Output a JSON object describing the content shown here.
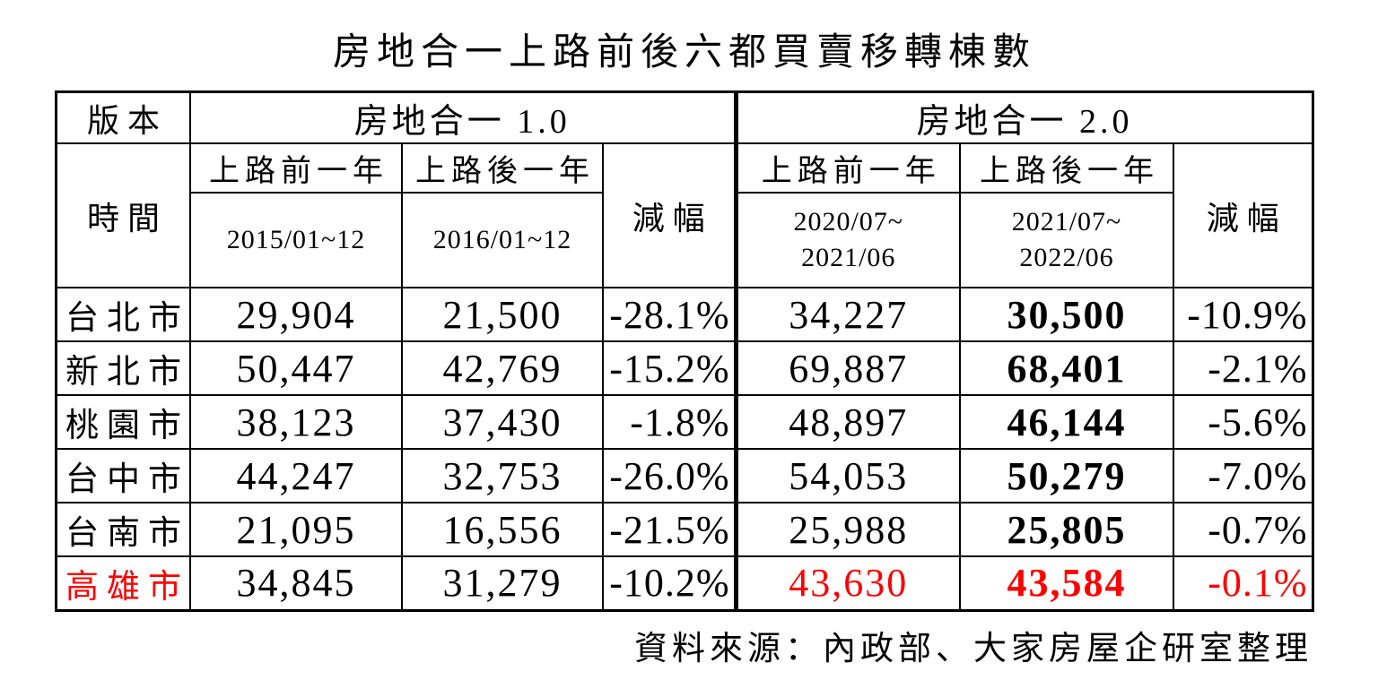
{
  "title": "房地合一上路前後六都買賣移轉棟數",
  "footer": "資料來源：內政部、大家房屋企研室整理",
  "colors": {
    "text": "#000000",
    "border": "#000000",
    "highlight": "#fe0000",
    "background": "#ffffff"
  },
  "table": {
    "version_label": "版本",
    "time_label": "時間",
    "sections": {
      "v1": {
        "label": "房地合一 1.0",
        "before_label": "上路前一年",
        "after_label": "上路後一年",
        "before_period": "2015/01~12",
        "after_period": "2016/01~12",
        "decrease_label": "減幅"
      },
      "v2": {
        "label": "房地合一 2.0",
        "before_label": "上路前一年",
        "after_label": "上路後一年",
        "before_period_line1": "2020/07~",
        "before_period_line2": "2021/06",
        "after_period_line1": "2021/07~",
        "after_period_line2": "2022/06",
        "decrease_label": "減幅"
      }
    },
    "rows": [
      {
        "city": "台北市",
        "v1_before": "29,904",
        "v1_after": "21,500",
        "v1_change": "-28.1%",
        "v2_before": "34,227",
        "v2_after": "30,500",
        "v2_change": "-10.9%"
      },
      {
        "city": "新北市",
        "v1_before": "50,447",
        "v1_after": "42,769",
        "v1_change": "-15.2%",
        "v2_before": "69,887",
        "v2_after": "68,401",
        "v2_change": "-2.1%"
      },
      {
        "city": "桃園市",
        "v1_before": "38,123",
        "v1_after": "37,430",
        "v1_change": "-1.8%",
        "v2_before": "48,897",
        "v2_after": "46,144",
        "v2_change": "-5.6%"
      },
      {
        "city": "台中市",
        "v1_before": "44,247",
        "v1_after": "32,753",
        "v1_change": "-26.0%",
        "v2_before": "54,053",
        "v2_after": "50,279",
        "v2_change": "-7.0%"
      },
      {
        "city": "台南市",
        "v1_before": "21,095",
        "v1_after": "16,556",
        "v1_change": "-21.5%",
        "v2_before": "25,988",
        "v2_after": "25,805",
        "v2_change": "-0.7%"
      },
      {
        "city": "高雄市",
        "v1_before": "34,845",
        "v1_after": "31,279",
        "v1_change": "-10.2%",
        "v2_before": "43,630",
        "v2_after": "43,584",
        "v2_change": "-0.1%"
      }
    ]
  },
  "chart_data": {
    "type": "table",
    "title": "房地合一上路前後六都買賣移轉棟數",
    "columns": [
      "城市",
      "房地合一1.0 上路前一年 2015/01~12",
      "房地合一1.0 上路後一年 2016/01~12",
      "房地合一1.0 減幅(%)",
      "房地合一2.0 上路前一年 2020/07~2021/06",
      "房地合一2.0 上路後一年 2021/07~2022/06",
      "房地合一2.0 減幅(%)"
    ],
    "rows": [
      [
        "台北市",
        29904,
        21500,
        -28.1,
        34227,
        30500,
        -10.9
      ],
      [
        "新北市",
        50447,
        42769,
        -15.2,
        69887,
        68401,
        -2.1
      ],
      [
        "桃園市",
        38123,
        37430,
        -1.8,
        48897,
        46144,
        -5.6
      ],
      [
        "台中市",
        44247,
        32753,
        -26.0,
        54053,
        50279,
        -7.0
      ],
      [
        "台南市",
        21095,
        16556,
        -21.5,
        25988,
        25805,
        -0.7
      ],
      [
        "高雄市",
        34845,
        31279,
        -10.2,
        43630,
        43584,
        -0.1
      ]
    ],
    "highlighted_row": "高雄市",
    "source": "資料來源：內政部、大家房屋企研室整理"
  }
}
